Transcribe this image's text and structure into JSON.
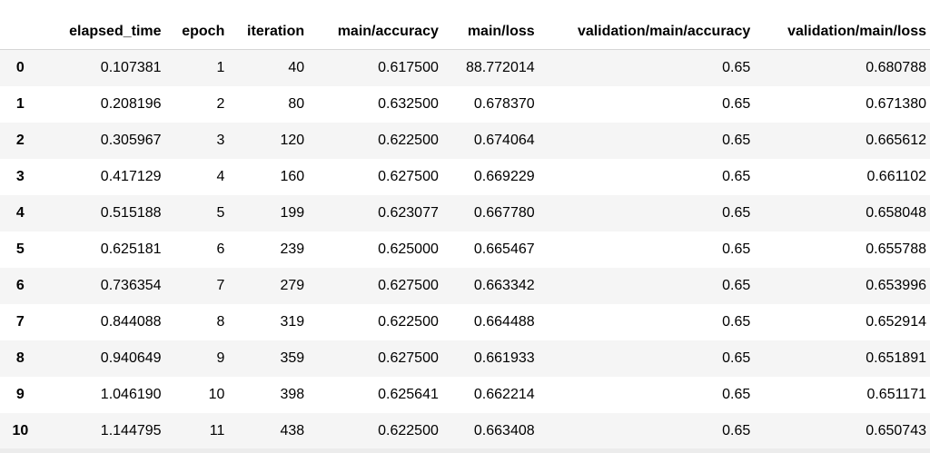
{
  "table": {
    "index_header": "",
    "columns": [
      "elapsed_time",
      "epoch",
      "iteration",
      "main/accuracy",
      "main/loss",
      "validation/main/accuracy",
      "validation/main/loss"
    ],
    "rows": [
      {
        "index": "0",
        "cells": [
          "0.107381",
          "1",
          "40",
          "0.617500",
          "88.772014",
          "0.65",
          "0.680788"
        ]
      },
      {
        "index": "1",
        "cells": [
          "0.208196",
          "2",
          "80",
          "0.632500",
          "0.678370",
          "0.65",
          "0.671380"
        ]
      },
      {
        "index": "2",
        "cells": [
          "0.305967",
          "3",
          "120",
          "0.622500",
          "0.674064",
          "0.65",
          "0.665612"
        ]
      },
      {
        "index": "3",
        "cells": [
          "0.417129",
          "4",
          "160",
          "0.627500",
          "0.669229",
          "0.65",
          "0.661102"
        ]
      },
      {
        "index": "4",
        "cells": [
          "0.515188",
          "5",
          "199",
          "0.623077",
          "0.667780",
          "0.65",
          "0.658048"
        ]
      },
      {
        "index": "5",
        "cells": [
          "0.625181",
          "6",
          "239",
          "0.625000",
          "0.665467",
          "0.65",
          "0.655788"
        ]
      },
      {
        "index": "6",
        "cells": [
          "0.736354",
          "7",
          "279",
          "0.627500",
          "0.663342",
          "0.65",
          "0.653996"
        ]
      },
      {
        "index": "7",
        "cells": [
          "0.844088",
          "8",
          "319",
          "0.622500",
          "0.664488",
          "0.65",
          "0.652914"
        ]
      },
      {
        "index": "8",
        "cells": [
          "0.940649",
          "9",
          "359",
          "0.627500",
          "0.661933",
          "0.65",
          "0.651891"
        ]
      },
      {
        "index": "9",
        "cells": [
          "1.046190",
          "10",
          "398",
          "0.625641",
          "0.662214",
          "0.65",
          "0.651171"
        ]
      },
      {
        "index": "10",
        "cells": [
          "1.144795",
          "11",
          "438",
          "0.622500",
          "0.663408",
          "0.65",
          "0.650743"
        ]
      }
    ]
  },
  "colors": {
    "stripe": "#f5f5f5",
    "background": "#ffffff",
    "text": "#000000"
  }
}
